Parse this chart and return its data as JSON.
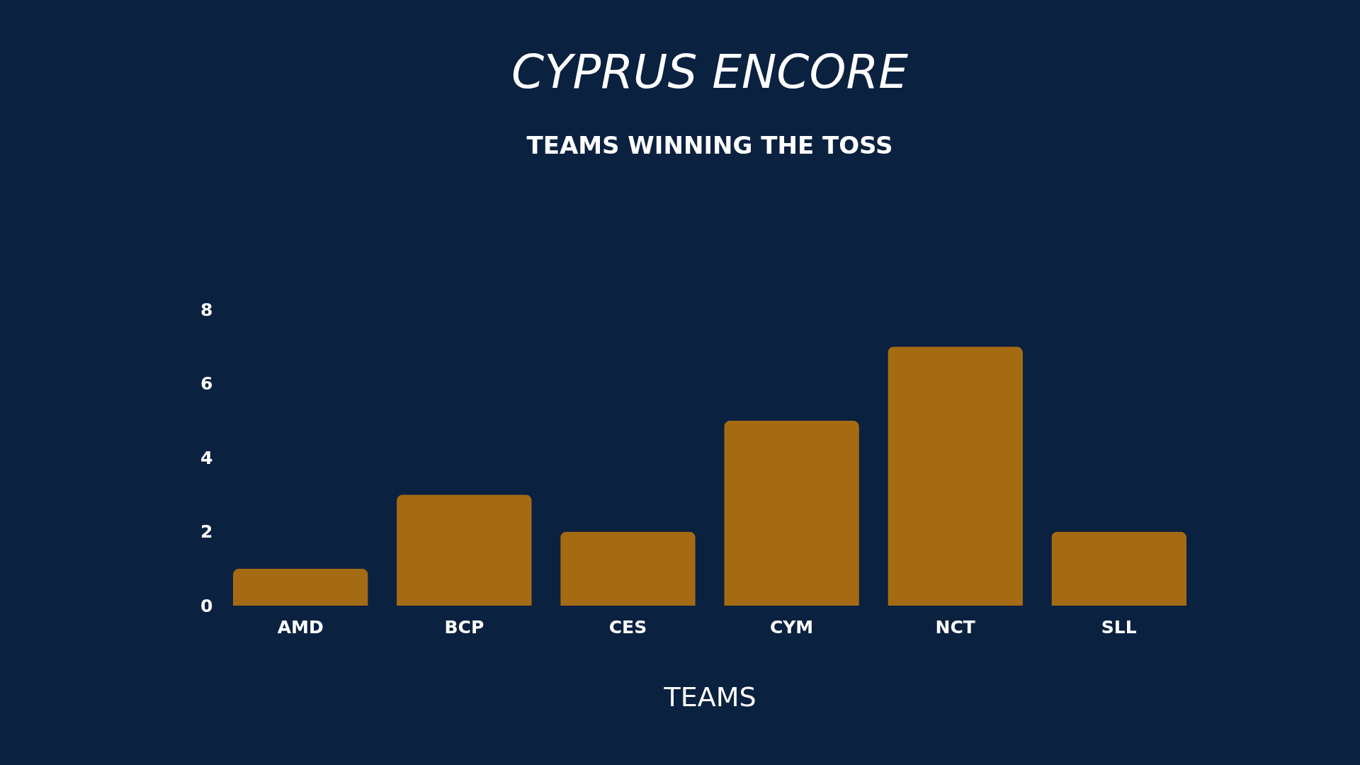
{
  "chart_data": {
    "type": "bar",
    "title": "CYPRUS ENCORE",
    "subtitle": "TEAMS WINNING THE TOSS",
    "xlabel": "TEAMS",
    "categories": [
      "AMD",
      "BCP",
      "CES",
      "CYM",
      "NCT",
      "SLL"
    ],
    "values": [
      1,
      3,
      2,
      5,
      7,
      2
    ],
    "color": "#a56b13",
    "ylim": [
      0,
      8
    ],
    "yticks": [
      0,
      2,
      4,
      6,
      8
    ]
  }
}
